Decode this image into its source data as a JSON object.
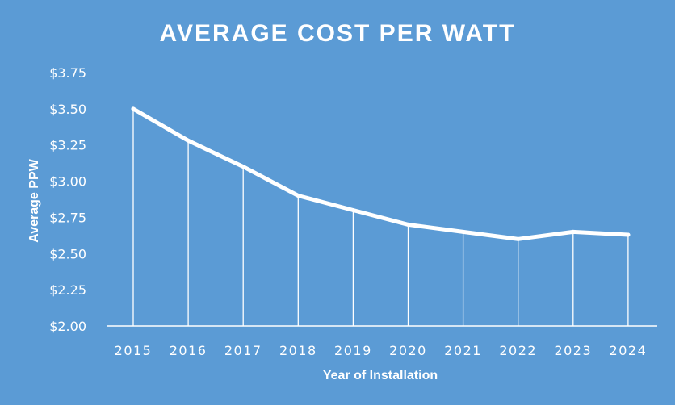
{
  "colors": {
    "background": "#5b9bd5",
    "line": "#ffffff",
    "text": "#ffffff"
  },
  "chart_data": {
    "type": "line",
    "title": "AVERAGE COST PER WATT",
    "xlabel": "Year of Installation",
    "ylabel": "Average PPW",
    "x": [
      "2015",
      "2016",
      "2017",
      "2018",
      "2019",
      "2020",
      "2021",
      "2022",
      "2023",
      "2024"
    ],
    "series": [
      {
        "values": [
          3.5,
          3.28,
          3.1,
          2.9,
          2.8,
          2.7,
          2.65,
          2.6,
          2.65,
          2.63
        ]
      }
    ],
    "ylim": [
      2.0,
      3.75
    ],
    "yticks": [
      "$2.00",
      "$2.25",
      "$2.50",
      "$2.75",
      "$3.00",
      "$3.25",
      "$3.50",
      "$3.75"
    ],
    "drop_lines": true,
    "grid": false,
    "legend": "none"
  }
}
